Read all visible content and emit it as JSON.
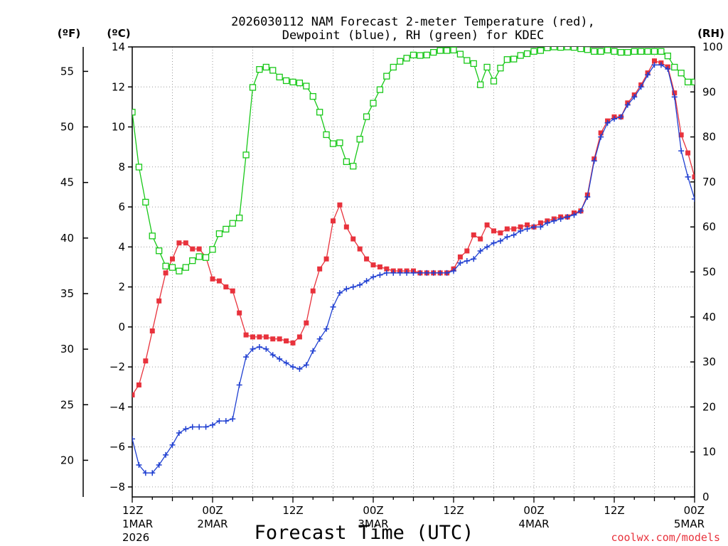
{
  "chart_data": {
    "type": "line",
    "title_line1": "2026030112 NAM Forecast 2-meter Temperature (red),",
    "title_line2": "Dewpoint (blue), RH (green) for KDEC",
    "xlabel": "Forecast Time (UTC)",
    "credit": "coolwx.com/models",
    "units": {
      "f": "(ºF)",
      "c": "(ºC)",
      "rh": "(RH)"
    },
    "x_hour_range": [
      0,
      84
    ],
    "c_range": [
      -8.5,
      14.0
    ],
    "rh_range": [
      0,
      100
    ],
    "c_ticks": [
      -8,
      -6,
      -4,
      -2,
      0,
      2,
      4,
      6,
      8,
      10,
      12,
      14
    ],
    "c_tick_labels": [
      "−8",
      "−6",
      "−4",
      "−2",
      "0",
      "2",
      "4",
      "6",
      "8",
      "10",
      "12",
      "14"
    ],
    "f_ticks": [
      20,
      25,
      30,
      35,
      40,
      45,
      50,
      55
    ],
    "rh_ticks": [
      0,
      10,
      20,
      30,
      40,
      50,
      60,
      70,
      80,
      90,
      100
    ],
    "x_ticks": [
      {
        "hour": 0,
        "label1": "12Z",
        "label2": "1MAR",
        "label3": "2026"
      },
      {
        "hour": 12,
        "label1": "00Z",
        "label2": "2MAR",
        "label3": ""
      },
      {
        "hour": 24,
        "label1": "12Z",
        "label2": "",
        "label3": ""
      },
      {
        "hour": 36,
        "label1": "00Z",
        "label2": "3MAR",
        "label3": ""
      },
      {
        "hour": 48,
        "label1": "12Z",
        "label2": "",
        "label3": ""
      },
      {
        "hour": 60,
        "label1": "00Z",
        "label2": "4MAR",
        "label3": ""
      },
      {
        "hour": 72,
        "label1": "12Z",
        "label2": "",
        "label3": ""
      },
      {
        "hour": 84,
        "label1": "00Z",
        "label2": "5MAR",
        "label3": ""
      }
    ],
    "x_hours": [
      0,
      1,
      2,
      3,
      4,
      5,
      6,
      7,
      8,
      9,
      10,
      11,
      12,
      13,
      14,
      15,
      16,
      17,
      18,
      19,
      20,
      21,
      22,
      23,
      24,
      25,
      26,
      27,
      28,
      29,
      30,
      31,
      32,
      33,
      34,
      35,
      36,
      37,
      38,
      39,
      40,
      41,
      42,
      43,
      44,
      45,
      46,
      47,
      48,
      49,
      50,
      51,
      52,
      53,
      54,
      55,
      56,
      57,
      58,
      59,
      60,
      61,
      62,
      63,
      64,
      65,
      66,
      67,
      68,
      69,
      70,
      71,
      72,
      73,
      74,
      75,
      76,
      77,
      78,
      79,
      80,
      81,
      82,
      83,
      84
    ],
    "series": [
      {
        "name": "2-meter Temperature",
        "unit": "C",
        "color": "#e8323c",
        "marker": "filled-square",
        "values": [
          -3.4,
          -2.9,
          -1.7,
          -0.2,
          1.3,
          2.7,
          3.4,
          4.2,
          4.2,
          3.9,
          3.9,
          3.5,
          2.4,
          2.3,
          2.0,
          1.8,
          0.7,
          -0.4,
          -0.5,
          -0.5,
          -0.5,
          -0.6,
          -0.6,
          -0.7,
          -0.8,
          -0.5,
          0.2,
          1.8,
          2.9,
          3.4,
          5.3,
          6.1,
          5.0,
          4.4,
          3.9,
          3.4,
          3.1,
          3.0,
          2.9,
          2.8,
          2.8,
          2.8,
          2.8,
          2.7,
          2.7,
          2.7,
          2.7,
          2.7,
          2.9,
          3.5,
          3.8,
          4.6,
          4.4,
          5.1,
          4.8,
          4.7,
          4.9,
          4.9,
          5.0,
          5.1,
          5.0,
          5.2,
          5.3,
          5.4,
          5.5,
          5.5,
          5.7,
          5.8,
          6.6,
          8.4,
          9.7,
          10.3,
          10.5,
          10.5,
          11.2,
          11.6,
          12.1,
          12.7,
          13.3,
          13.2,
          13.0,
          11.7,
          9.6,
          8.7,
          7.5
        ]
      },
      {
        "name": "Dewpoint",
        "unit": "C",
        "color": "#1f3fd1",
        "marker": "plus",
        "values": [
          -5.6,
          -6.9,
          -7.3,
          -7.3,
          -6.9,
          -6.4,
          -5.9,
          -5.3,
          -5.1,
          -5.0,
          -5.0,
          -5.0,
          -4.9,
          -4.7,
          -4.7,
          -4.6,
          -2.9,
          -1.5,
          -1.1,
          -1.0,
          -1.1,
          -1.4,
          -1.6,
          -1.8,
          -2.0,
          -2.1,
          -1.9,
          -1.2,
          -0.6,
          -0.1,
          1.0,
          1.7,
          1.9,
          2.0,
          2.1,
          2.3,
          2.5,
          2.6,
          2.7,
          2.7,
          2.7,
          2.7,
          2.7,
          2.7,
          2.7,
          2.7,
          2.7,
          2.7,
          2.8,
          3.2,
          3.3,
          3.4,
          3.8,
          4.0,
          4.2,
          4.3,
          4.5,
          4.6,
          4.8,
          4.9,
          5.0,
          5.0,
          5.2,
          5.3,
          5.4,
          5.5,
          5.6,
          5.8,
          6.5,
          8.3,
          9.5,
          10.2,
          10.4,
          10.5,
          11.1,
          11.5,
          12.0,
          12.6,
          13.1,
          13.1,
          12.9,
          11.5,
          8.8,
          7.5,
          6.4
        ]
      },
      {
        "name": "RH",
        "unit": "%",
        "color": "#18c818",
        "marker": "open-square",
        "values": [
          85.5,
          73.3,
          65.5,
          58.0,
          54.7,
          51.3,
          51.0,
          50.2,
          51.0,
          52.5,
          53.4,
          53.2,
          55.0,
          58.5,
          59.5,
          60.8,
          62.0,
          76.0,
          91.0,
          95.0,
          95.5,
          94.8,
          93.3,
          92.5,
          92.2,
          92.0,
          91.3,
          89.0,
          85.5,
          80.5,
          78.5,
          78.7,
          74.5,
          73.5,
          79.5,
          84.5,
          87.5,
          90.5,
          93.5,
          95.5,
          96.8,
          97.5,
          98.2,
          98.1,
          98.2,
          98.8,
          99.2,
          99.2,
          99.3,
          98.4,
          97.0,
          96.3,
          91.6,
          95.5,
          92.4,
          95.3,
          97.2,
          97.3,
          98.1,
          98.5,
          99.0,
          99.2,
          99.8,
          100.0,
          99.9,
          100.0,
          99.9,
          99.6,
          99.4,
          99.0,
          99.0,
          99.3,
          99.0,
          98.8,
          98.8,
          99.0,
          99.0,
          99.0,
          99.0,
          99.0,
          98.0,
          95.5,
          94.2,
          92.2,
          92.2
        ]
      }
    ]
  }
}
